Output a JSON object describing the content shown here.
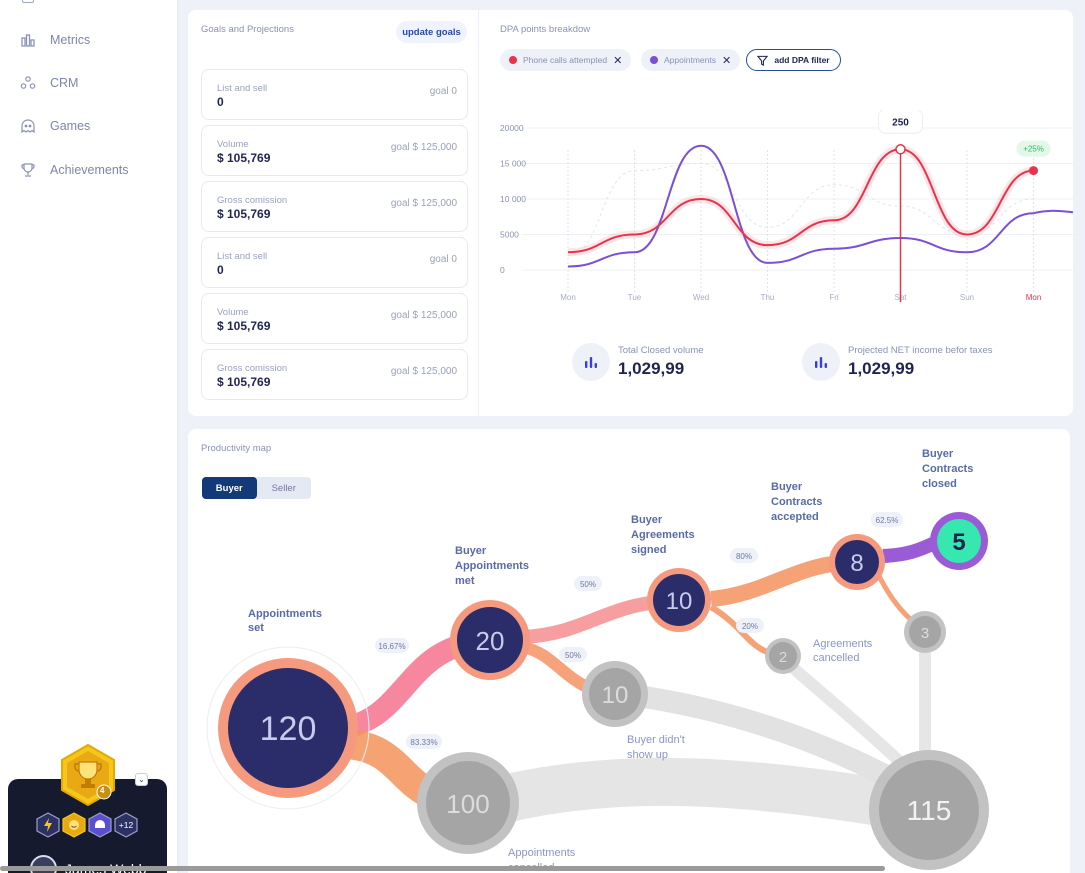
{
  "sidebar": {
    "items": [
      {
        "label": "Metrics",
        "icon": "bar-chart-icon"
      },
      {
        "label": "CRM",
        "icon": "people-icon"
      },
      {
        "label": "Games",
        "icon": "ghost-icon"
      },
      {
        "label": "Achievements",
        "icon": "trophy-icon"
      }
    ],
    "profile": {
      "name": "James Webb",
      "trophy_level": "4",
      "badges_more": "+12"
    }
  },
  "goals": {
    "title": "Goals and Projections",
    "update_label": "update goals",
    "cards": [
      {
        "label": "List and sell",
        "value": "0",
        "goal": "goal 0"
      },
      {
        "label": "Volume",
        "value": "$ 105,769",
        "goal": "goal $ 125,000"
      },
      {
        "label": "Gross comission",
        "value": "$ 105,769",
        "goal": "goal $ 125,000"
      },
      {
        "label": "List and sell",
        "value": "0",
        "goal": "goal 0"
      },
      {
        "label": "Volume",
        "value": "$ 105,769",
        "goal": "goal $ 125,000"
      },
      {
        "label": "Gross comission",
        "value": "$ 105,769",
        "goal": "goal $ 125,000"
      }
    ]
  },
  "dpa": {
    "title": "DPA points breakdow",
    "filters": [
      {
        "label": "Phone calls attempted",
        "color": "#e8334a"
      },
      {
        "label": "Appointments",
        "color": "#7b4fd6"
      }
    ],
    "add_filter_label": "add DPA filter",
    "kpis": [
      {
        "label": "Total Closed volume",
        "value": "1,029,99"
      },
      {
        "label": "Projected NET income befor taxes",
        "value": "1,029,99"
      }
    ]
  },
  "chart_data": {
    "type": "line",
    "categories": [
      "Mon",
      "Tue",
      "Wed",
      "Thu",
      "Fri",
      "Sat",
      "Sun",
      "Mon"
    ],
    "y_ticks": [
      "20000",
      "15 000",
      "10 000",
      "5000",
      "0"
    ],
    "ylim": [
      0,
      20000
    ],
    "series": [
      {
        "name": "Phone calls attempted",
        "color": "#e8334a",
        "values": [
          2500,
          5000,
          10000,
          3500,
          7000,
          17000,
          5000,
          14000
        ]
      },
      {
        "name": "Appointments",
        "color": "#7b4fd6",
        "values": [
          500,
          2500,
          17500,
          1000,
          3000,
          4500,
          2500,
          8000
        ]
      }
    ],
    "tooltip": "250",
    "badge": "+25%",
    "highlight_x_label": "Mon"
  },
  "productivity": {
    "title": "Productivity map",
    "toggle": [
      "Buyer",
      "Seller"
    ],
    "nodes": [
      {
        "id": "appt-set",
        "value": "120",
        "label": [
          "Appointments",
          "set"
        ]
      },
      {
        "id": "appt-met",
        "value": "20",
        "label": [
          "Buyer",
          "Appointments",
          "met"
        ]
      },
      {
        "id": "agreements",
        "value": "10",
        "label": [
          "Buyer",
          "Agreements",
          "signed"
        ]
      },
      {
        "id": "contracts-acc",
        "value": "8",
        "label": [
          "Buyer",
          "Contracts",
          "accepted"
        ]
      },
      {
        "id": "contracts-closed",
        "value": "5",
        "label": [
          "Buyer",
          "Contracts",
          "closed"
        ]
      },
      {
        "id": "appt-cancel",
        "value": "100",
        "label": [
          "Appointments",
          "cancelled"
        ]
      },
      {
        "id": "no-show",
        "value": "10",
        "label": [
          "Buyer didn't",
          "show up"
        ]
      },
      {
        "id": "agr-cancel",
        "value": "2",
        "label": [
          "Agreements",
          "cancelled"
        ]
      },
      {
        "id": "contract-cancel",
        "value": "3",
        "label": []
      },
      {
        "id": "total-lost",
        "value": "115",
        "label": []
      }
    ],
    "percents": [
      "16.67%",
      "83.33%",
      "50%",
      "50%",
      "80%",
      "20%",
      "62.5%"
    ]
  }
}
